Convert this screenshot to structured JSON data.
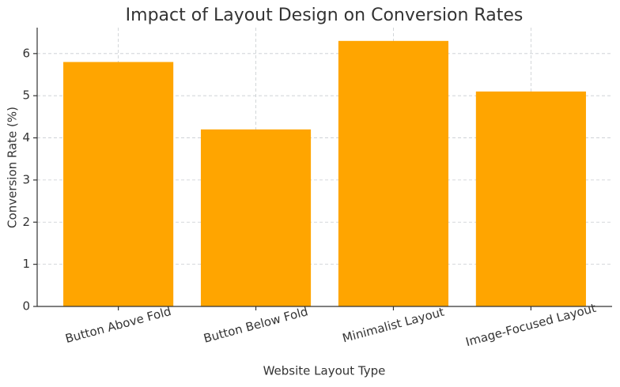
{
  "chart_data": {
    "type": "bar",
    "title": "Impact of Layout Design on Conversion Rates",
    "x_label": "Website Layout Type",
    "y_label": "Conversion Rate (%)",
    "categories": [
      "Button Above Fold",
      "Button Below Fold",
      "Minimalist Layout",
      "Image-Focused Layout"
    ],
    "values": [
      5.8,
      4.2,
      6.3,
      5.1
    ],
    "color": "#ffa500",
    "ylim": [
      0,
      6.615
    ],
    "yticks": [
      0,
      1,
      2,
      3,
      4,
      5,
      6
    ],
    "grid": true
  }
}
